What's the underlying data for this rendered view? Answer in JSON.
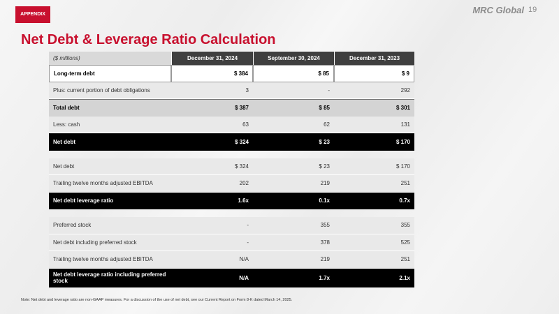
{
  "header": {
    "tab": "APPENDIX",
    "logo": "MRC Global",
    "page_number": "19",
    "title": "Net Debt & Leverage Ratio Calculation"
  },
  "table": {
    "header": [
      "($ millions)",
      "December 31, 2024",
      "September 30, 2024",
      "December 31, 2023"
    ],
    "sections": [
      [
        [
          "Long-term debt",
          "$ 384",
          "$ 85",
          "$ 9"
        ],
        [
          "Plus: current portion of debt obligations",
          "3",
          "-",
          "292"
        ],
        [
          "Total debt",
          "$ 387",
          "$ 85",
          "$ 301"
        ],
        [
          "Less: cash",
          "63",
          "62",
          "131"
        ],
        [
          "Net debt",
          "$ 324",
          "$ 23",
          "$ 170"
        ]
      ],
      [
        [
          "Net debt",
          "$ 324",
          "$ 23",
          "$ 170"
        ],
        [
          "Trailing twelve months adjusted EBITDA",
          "202",
          "219",
          "251"
        ],
        [
          "Net debt leverage ratio",
          "1.6x",
          "0.1x",
          "0.7x"
        ]
      ],
      [
        [
          "Preferred stock",
          "-",
          "355",
          "355"
        ],
        [
          "Net debt including preferred stock",
          "-",
          "378",
          "525"
        ],
        [
          "Trailing twelve months adjusted EBITDA",
          "N/A",
          "219",
          "251"
        ],
        [
          "Net debt leverage ratio including preferred stock",
          "N/A",
          "1.7x",
          "2.1x"
        ]
      ]
    ]
  },
  "footer": {
    "note": "Note: Net debt and leverage ratio are non-GAAP measures. For a discussion of the use of net debt, see our Current Report on Form 8-K dated March 14, 2025."
  }
}
